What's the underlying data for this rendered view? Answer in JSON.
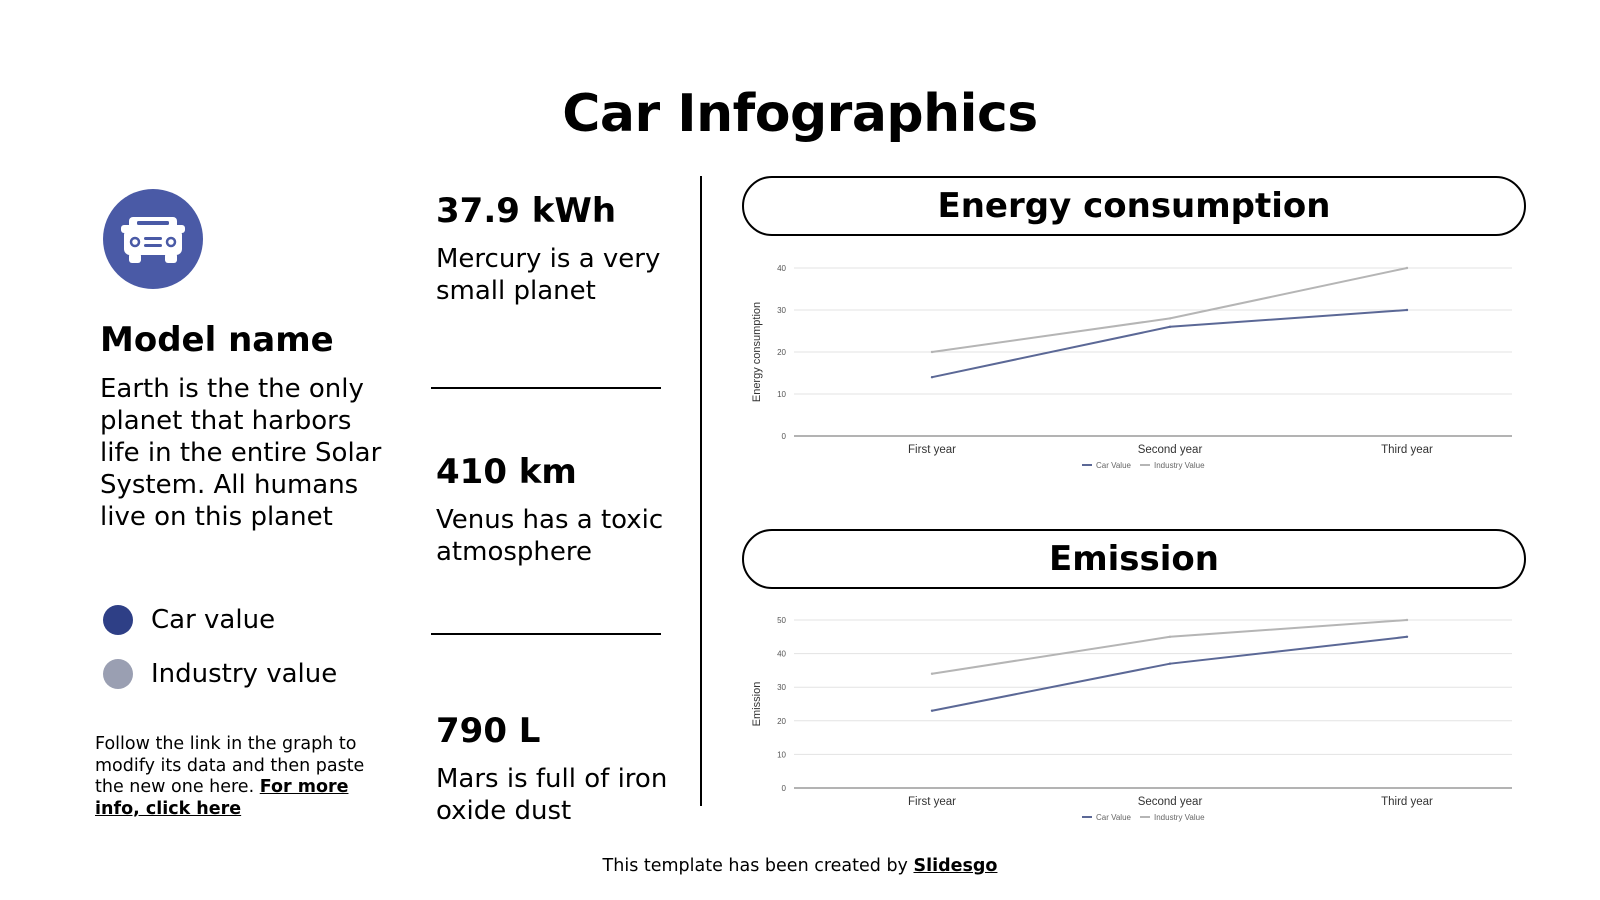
{
  "title": "Car Infographics",
  "model": {
    "name": "Model name",
    "description": "Earth is the the only planet that harbors life in the entire Solar System. All humans live on this planet"
  },
  "legend": [
    {
      "label": "Car value",
      "color": "#2e3f86"
    },
    {
      "label": "Industry value",
      "color": "#9a9fb2"
    }
  ],
  "note": {
    "text": "Follow the link in the graph to modify its data and then paste the new one here. ",
    "link": "For more info, click here"
  },
  "stats": [
    {
      "value": "37.9 kWh",
      "desc": "Mercury is a very small planet"
    },
    {
      "value": "410 km",
      "desc": "Venus has a toxic atmosphere"
    },
    {
      "value": "790 L",
      "desc": "Mars is full of iron oxide dust"
    }
  ],
  "sections": {
    "energy_title": "Energy consumption",
    "emission_title": "Emission"
  },
  "footer": {
    "text": "This template has been created by ",
    "link": "Slidesgo"
  },
  "icons": {
    "car": "car-icon"
  },
  "chart_data": [
    {
      "type": "line",
      "categories": [
        "First year",
        "Second year",
        "Third year"
      ],
      "series": [
        {
          "name": "Car Value",
          "values": [
            14,
            26,
            30
          ],
          "color": "#5b6896"
        },
        {
          "name": "Industry Value",
          "values": [
            20,
            28,
            40
          ],
          "color": "#b5b5b5"
        }
      ],
      "ylabel": "Energy consumption",
      "ylim": [
        0,
        40
      ],
      "yticks": [
        0,
        10,
        20,
        30,
        40
      ],
      "grid": true,
      "legend": "bottom"
    },
    {
      "type": "line",
      "categories": [
        "First year",
        "Second year",
        "Third year"
      ],
      "series": [
        {
          "name": "Car Value",
          "values": [
            23,
            37,
            45
          ],
          "color": "#5b6896"
        },
        {
          "name": "Industry Value",
          "values": [
            34,
            45,
            50
          ],
          "color": "#b5b5b5"
        }
      ],
      "ylabel": "Emission",
      "ylim": [
        0,
        50
      ],
      "yticks": [
        0,
        10,
        20,
        30,
        40,
        50
      ],
      "grid": true,
      "legend": "bottom"
    }
  ]
}
